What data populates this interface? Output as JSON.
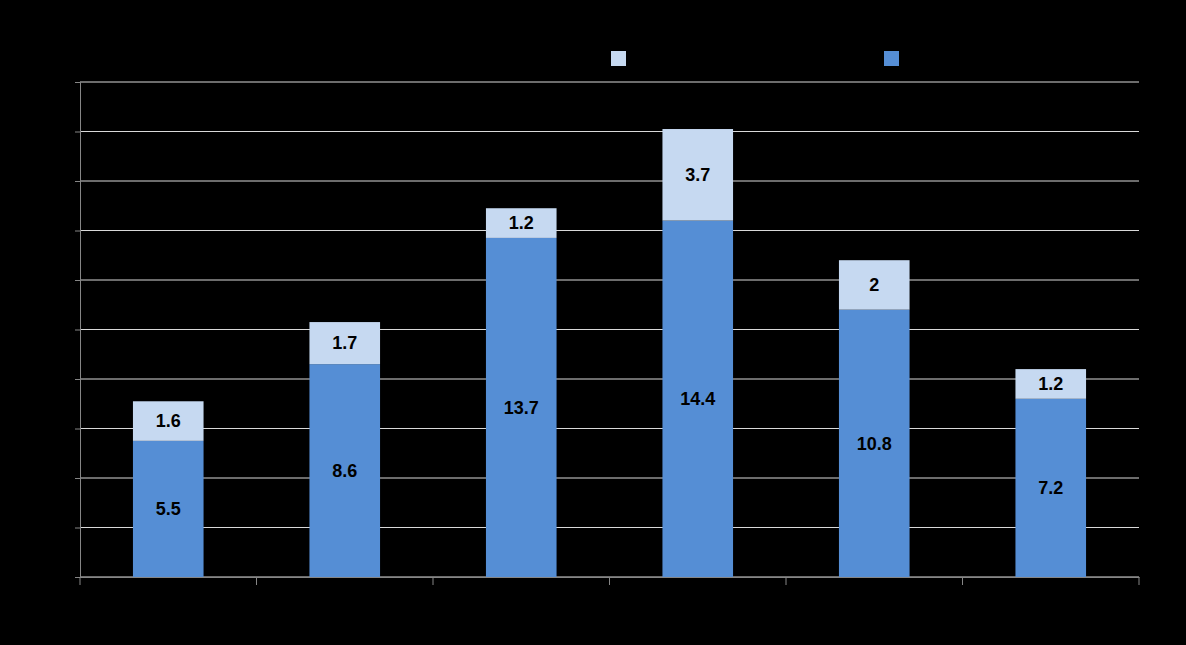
{
  "chart_data": {
    "type": "bar",
    "stacked": true,
    "data_labels": true,
    "grid": true,
    "tick_labels": false,
    "legend": "top",
    "categories": [
      null,
      null,
      null,
      null,
      null,
      null
    ],
    "ylim": [
      0,
      20
    ],
    "yticks": [
      0,
      2,
      4,
      6,
      8,
      10,
      12,
      14,
      16,
      18,
      20
    ],
    "series": [
      {
        "color": "#558ED5",
        "values": [
          5.5,
          8.6,
          13.7,
          14.4,
          10.8,
          7.2
        ]
      },
      {
        "color": "#C6D9F1",
        "values": [
          1.6,
          1.7,
          1.2,
          3.7,
          2.0,
          1.2
        ]
      }
    ]
  }
}
